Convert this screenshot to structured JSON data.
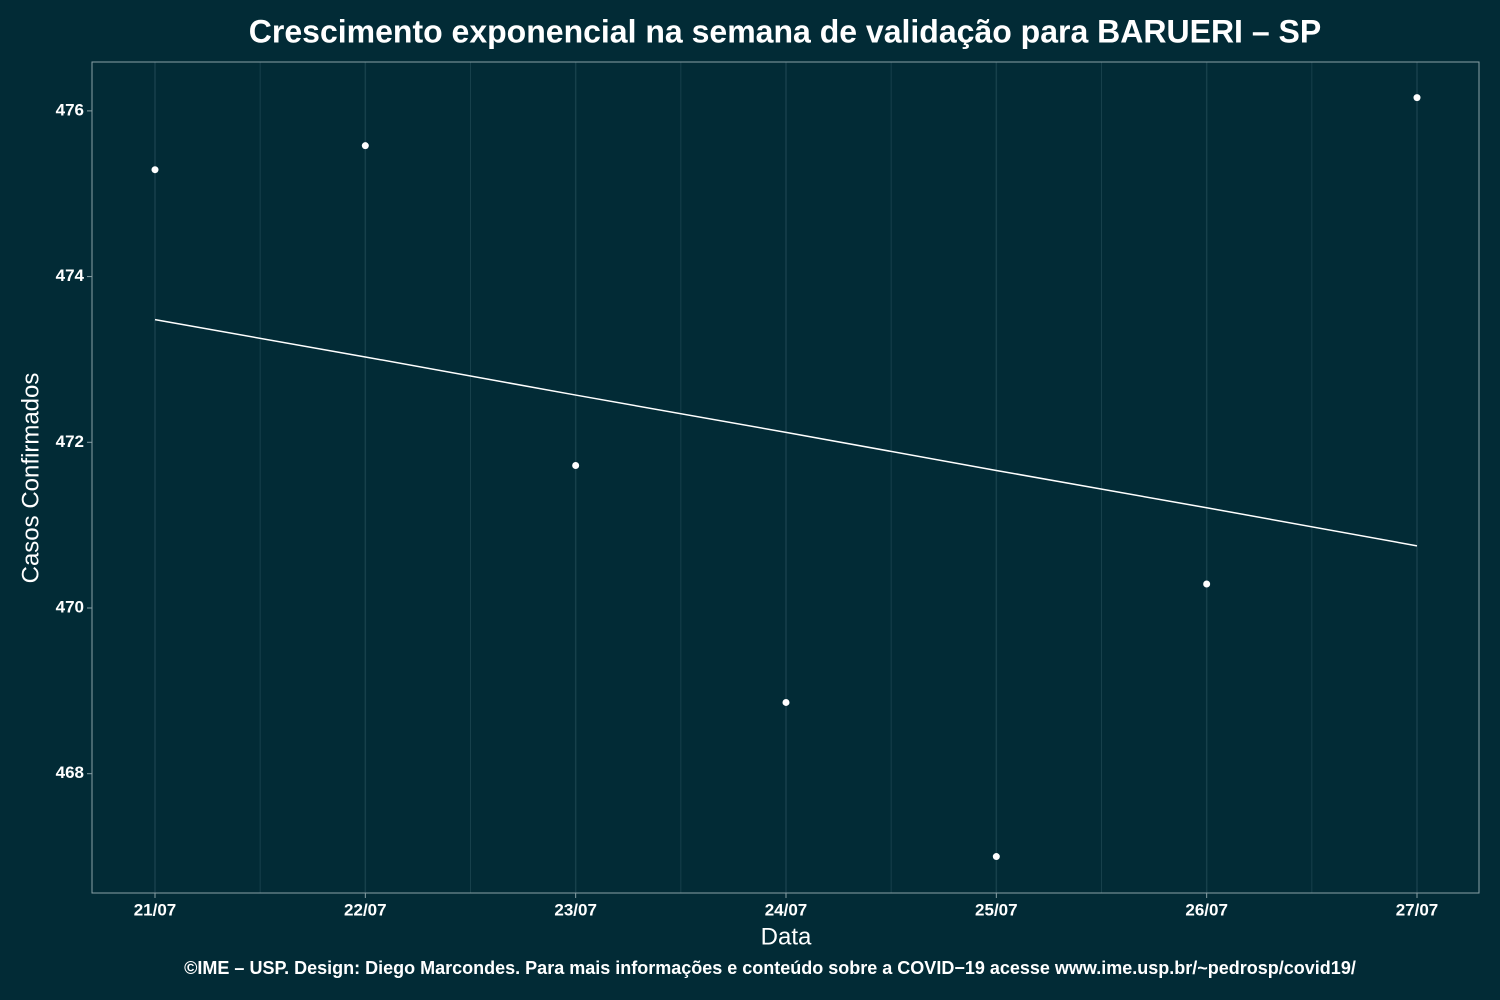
{
  "chart_data": {
    "type": "scatter",
    "title": "Crescimento exponencial na semana de validação para BARUERI – SP",
    "x_label": "Data",
    "y_label": "Casos Confirmados",
    "footer": "©IME – USP. Design: Diego Marcondes. Para mais informações e conteúdo sobre a COVID−19 acesse www.ime.usp.br/~pedrosp/covid19/",
    "categories": [
      "21/07",
      "22/07",
      "23/07",
      "24/07",
      "25/07",
      "26/07",
      "27/07"
    ],
    "series": [
      {
        "type": "scatter",
        "color": "#ffffff",
        "values": [
          475.29,
          475.58,
          471.72,
          468.86,
          467.0,
          470.29,
          476.16
        ]
      },
      {
        "type": "line",
        "color": "#ffffff",
        "values": [
          473.48,
          473.03,
          472.57,
          472.12,
          471.66,
          471.21,
          470.75
        ]
      }
    ],
    "ylim": [
      466.56,
      476.59
    ],
    "yticks": [
      468,
      470,
      472,
      474,
      476
    ],
    "background": "#022b36",
    "grid": true
  }
}
